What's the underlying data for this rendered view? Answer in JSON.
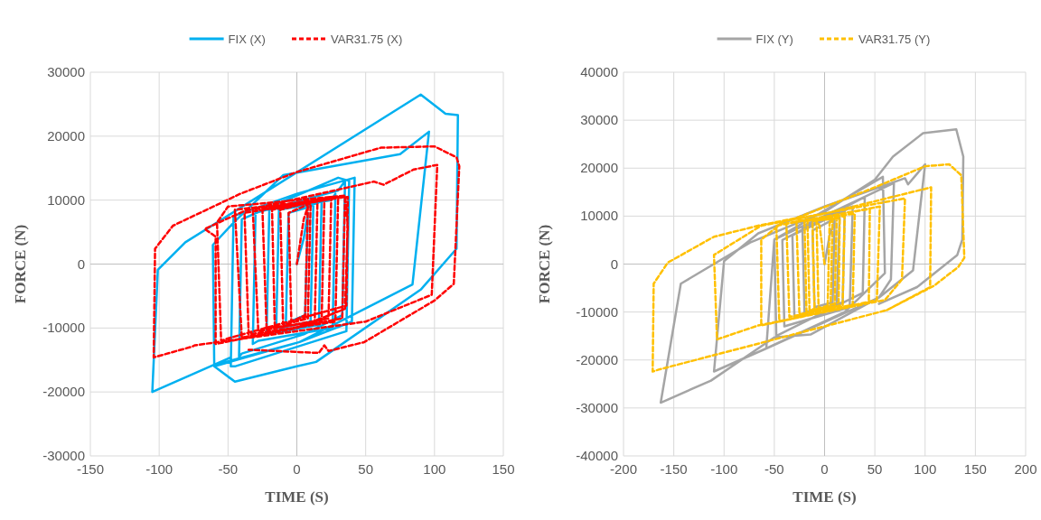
{
  "chart_data": [
    {
      "type": "line",
      "xlabel": "TIME (S)",
      "ylabel": "FORCE (N)",
      "xlim": [
        -150,
        150
      ],
      "ylim": [
        -30000,
        30000
      ],
      "xticks": [
        -150,
        -100,
        -50,
        0,
        50,
        100,
        150
      ],
      "yticks": [
        -30000,
        -20000,
        -10000,
        0,
        10000,
        20000,
        30000
      ],
      "grid": true,
      "legend": "top",
      "series": [
        {
          "name": "FIX (X)",
          "color": "#00b0f0",
          "line_style": "solid",
          "x": [
            0,
            5,
            8,
            6,
            -5,
            -8,
            -6,
            10,
            12,
            10,
            -12,
            -15,
            -13,
            15,
            18,
            16,
            -22,
            -20,
            25,
            28,
            26,
            -28,
            -32,
            -30,
            30,
            35,
            33,
            5,
            -40,
            -42,
            -40,
            30,
            38,
            36,
            -45,
            -48,
            -46,
            0,
            42,
            40,
            2,
            -60,
            -61,
            -45,
            -10,
            75,
            96,
            84,
            2,
            -60,
            -45,
            0,
            14,
            90,
            116,
            117,
            108,
            90,
            -81,
            -101,
            -105,
            -48
          ],
          "values": [
            0,
            4000,
            8000,
            -8000,
            -9000,
            -9500,
            8000,
            9000,
            9500,
            -9000,
            -10000,
            -10000,
            8500,
            9500,
            10000,
            -9500,
            -11000,
            8500,
            10000,
            11000,
            -10000,
            -12000,
            -12500,
            8000,
            11500,
            13000,
            -8000,
            -11000,
            -14000,
            -14500,
            7000,
            13500,
            13000,
            -10500,
            -16000,
            -16000,
            7500,
            11000,
            13500,
            -9000,
            -12200,
            -15800,
            3000,
            6700,
            13900,
            17200,
            20700,
            -3200,
            -12200,
            -16000,
            -18400,
            -16000,
            -15300,
            -4000,
            2400,
            23300,
            23500,
            26500,
            3400,
            -900,
            -20000,
            -14600
          ]
        },
        {
          "name": "VAR31.75 (X)",
          "color": "#ff0000",
          "line_style": "dashed",
          "x": [
            0,
            5,
            8,
            6,
            -4,
            -6,
            10,
            8,
            -10,
            -12,
            15,
            13,
            -16,
            -18,
            20,
            18,
            -22,
            -25,
            25,
            23,
            -28,
            -32,
            30,
            28,
            -35,
            -38,
            35,
            33,
            -40,
            -45,
            37,
            36,
            -48,
            -55,
            -58,
            -50,
            35,
            37,
            35,
            0,
            -59,
            -59,
            -67,
            -37,
            56,
            63,
            85,
            102,
            98,
            50,
            -74,
            -76,
            -104,
            -103,
            -90,
            -41,
            0,
            61,
            100,
            116,
            118,
            114,
            100,
            49,
            23,
            20,
            16,
            -35
          ],
          "values": [
            0,
            7000,
            9000,
            -8000,
            -9000,
            8000,
            9500,
            -8500,
            -9500,
            8500,
            10000,
            -9000,
            -10000,
            8500,
            10000,
            -9000,
            -10000,
            8500,
            10500,
            -8500,
            -10500,
            8500,
            10500,
            -9000,
            -11000,
            8000,
            10500,
            -8500,
            -11500,
            8500,
            10500,
            -6500,
            -11500,
            -12000,
            6500,
            9000,
            10700,
            6000,
            -7000,
            -10000,
            -12500,
            4300,
            5500,
            8400,
            12900,
            12400,
            14800,
            15500,
            -4800,
            -9000,
            -12700,
            -12900,
            -14600,
            2400,
            6000,
            11000,
            14400,
            18200,
            18400,
            16700,
            15300,
            -3100,
            -5700,
            -12200,
            -13600,
            -12700,
            -13900,
            -13400
          ]
        }
      ]
    },
    {
      "type": "line",
      "xlabel": "TIME (S)",
      "ylabel": "FORCE (N)",
      "xlim": [
        -200,
        200
      ],
      "ylim": [
        -40000,
        40000
      ],
      "xticks": [
        -200,
        -150,
        -100,
        -50,
        0,
        50,
        100,
        150,
        200
      ],
      "yticks": [
        -40000,
        -30000,
        -20000,
        -10000,
        0,
        10000,
        20000,
        30000,
        40000
      ],
      "grid": true,
      "legend": "top",
      "series": [
        {
          "name": "FIX (Y)",
          "color": "#a5a5a5",
          "line_style": "solid",
          "x": [
            0,
            5,
            10,
            8,
            -10,
            -12,
            15,
            12,
            -20,
            -22,
            20,
            18,
            -30,
            -32,
            28,
            25,
            -40,
            -42,
            40,
            38,
            -48,
            -50,
            58,
            60,
            20,
            -58,
            -50,
            69,
            66,
            54,
            -58,
            -110,
            -100,
            -66,
            0,
            80,
            83,
            100,
            88,
            54,
            -14,
            -50,
            -113,
            -163,
            -143,
            -74,
            0,
            50,
            68,
            98,
            131,
            138,
            137,
            132,
            92,
            54
          ],
          "values": [
            0,
            6000,
            9000,
            -8000,
            -9000,
            7000,
            10000,
            -8500,
            -10000,
            7500,
            11000,
            -8000,
            -11000,
            6000,
            12000,
            -9000,
            -13000,
            5000,
            14000,
            -6000,
            -15000,
            5100,
            18200,
            -1900,
            -10000,
            -17600,
            5100,
            16900,
            -3200,
            -7000,
            -17600,
            -22400,
            600,
            6400,
            12000,
            17900,
            16600,
            20800,
            -1300,
            -7000,
            -14700,
            -15300,
            -24300,
            -28900,
            -4100,
            4500,
            10900,
            17600,
            22400,
            27300,
            28100,
            22400,
            5100,
            1900,
            -4800,
            -8300
          ]
        },
        {
          "name": "VAR31.75 (Y)",
          "color": "#ffc000",
          "line_style": "dashed",
          "x": [
            0,
            -5,
            -8,
            -6,
            3,
            5,
            8,
            6,
            -10,
            -12,
            12,
            10,
            -15,
            -17,
            15,
            14,
            -18,
            -20,
            20,
            18,
            -25,
            -28,
            30,
            28,
            -35,
            -38,
            45,
            44,
            -45,
            -48,
            55,
            52,
            -63,
            -63,
            -40,
            80,
            77,
            60,
            -66,
            -107,
            -110,
            -63,
            0,
            106,
            105,
            62,
            -165,
            -171,
            -170,
            -156,
            -110,
            -66,
            -28,
            50,
            100,
            124,
            136,
            139,
            133,
            109,
            62
          ],
          "values": [
            0,
            8000,
            9000,
            -9000,
            -9500,
            8500,
            9500,
            -9000,
            -9500,
            9000,
            9500,
            -9000,
            -9500,
            9000,
            9500,
            -8000,
            -10000,
            9000,
            10000,
            -8500,
            -10500,
            9000,
            10500,
            -8500,
            -11000,
            8500,
            11500,
            -8000,
            -12000,
            8000,
            12000,
            -7500,
            -12800,
            5100,
            9000,
            13700,
            -3200,
            -7500,
            -12800,
            -15700,
            1900,
            8000,
            10500,
            16000,
            -4800,
            -9600,
            -22000,
            -22400,
            -4100,
            300,
            5700,
            8000,
            9600,
            16000,
            20400,
            20800,
            18500,
            1300,
            -600,
            -4500,
            -9600
          ]
        }
      ]
    }
  ]
}
